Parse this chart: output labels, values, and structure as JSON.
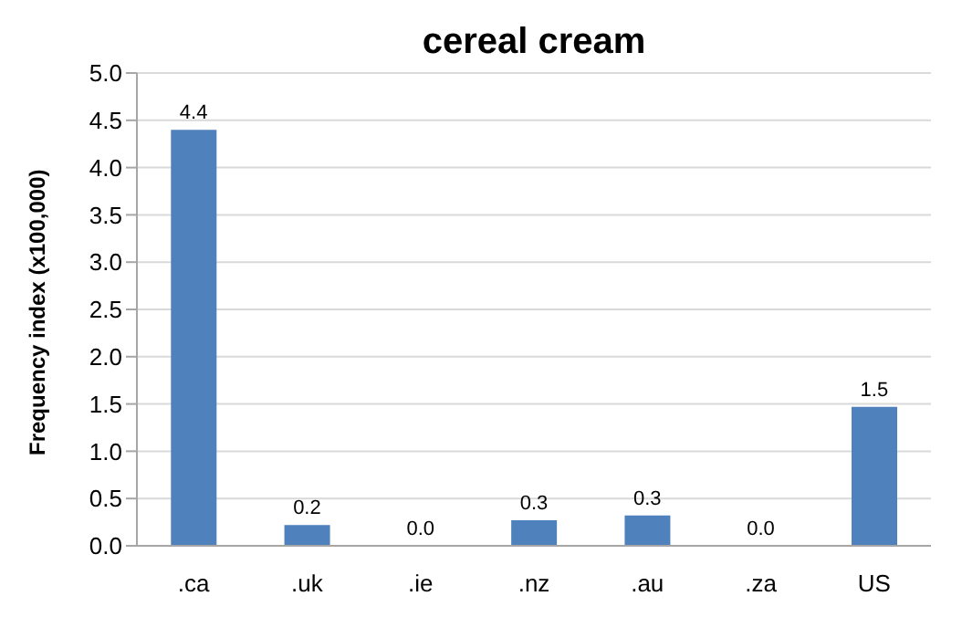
{
  "chart_data": {
    "type": "bar",
    "title": "cereal cream",
    "ylabel": "Frequency index (x100,000)",
    "categories": [
      ".ca",
      ".uk",
      ".ie",
      ".nz",
      ".au",
      ".za",
      "US"
    ],
    "values": [
      4.4,
      0.22,
      0,
      0.27,
      0.32,
      0,
      1.47
    ],
    "value_labels": [
      "4.4",
      "0.2",
      "0.0",
      "0.3",
      "0.3",
      "0.0",
      "1.5"
    ],
    "color": "#4f81bd",
    "ylim": [
      0,
      5
    ],
    "yticks": [
      {
        "value": 0,
        "label": "0.0"
      },
      {
        "value": 0.5,
        "label": "0.5"
      },
      {
        "value": 1,
        "label": "1.0"
      },
      {
        "value": 1.5,
        "label": "1.5"
      },
      {
        "value": 2,
        "label": "2.0"
      },
      {
        "value": 2.5,
        "label": "2.5"
      },
      {
        "value": 3,
        "label": "3.0"
      },
      {
        "value": 3.5,
        "label": "3.5"
      },
      {
        "value": 4,
        "label": "4.0"
      },
      {
        "value": 4.5,
        "label": "4.5"
      },
      {
        "value": 5,
        "label": "5.0"
      }
    ],
    "grid": "y"
  }
}
